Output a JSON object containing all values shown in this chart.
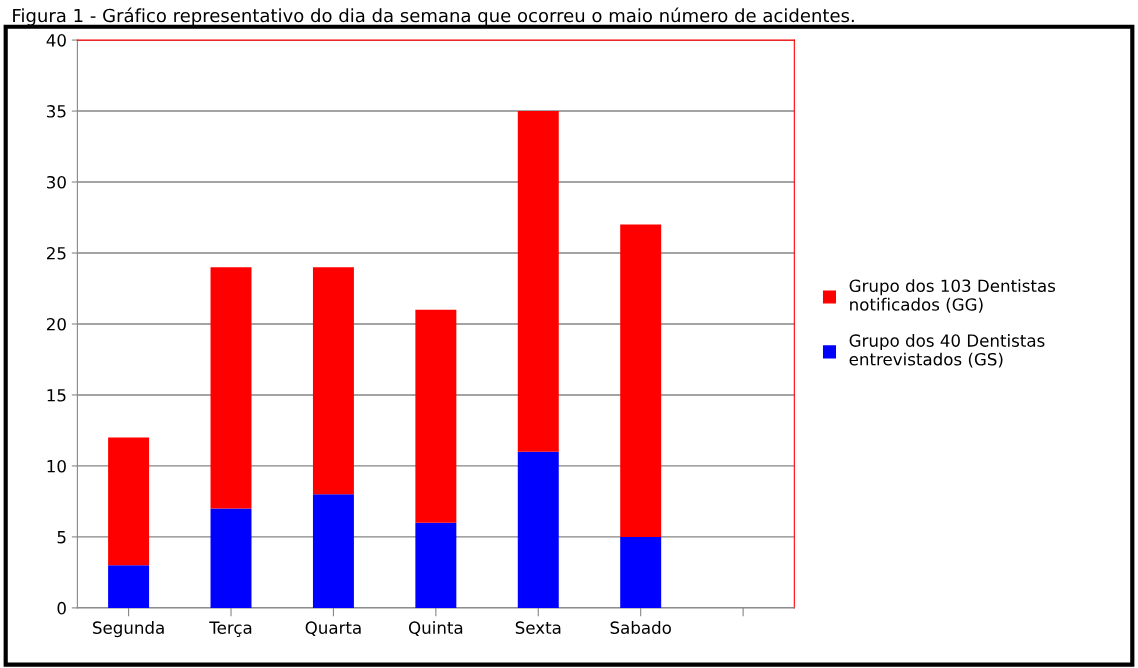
{
  "chart_data": {
    "type": "bar",
    "title": "Figura 1 - Gráfico representativo do dia da semana que ocorreu o maio número de acidentes.",
    "categories": [
      "Segunda",
      "Terça",
      "Quarta",
      "Quinta",
      "Sexta",
      "Sabado",
      null
    ],
    "stacked": true,
    "series": [
      {
        "name": "Grupo dos 40 Dentistas entrevistados (GS)",
        "color": "#0000ff",
        "values": [
          3,
          7,
          8,
          6,
          11,
          5,
          null
        ]
      },
      {
        "name": "Grupo dos 103 Dentistas notificados (GG)",
        "color": "#ff0000",
        "values": [
          9,
          17,
          16,
          15,
          24,
          22,
          null
        ]
      }
    ],
    "ylim": [
      0,
      40
    ],
    "yticks": [
      0,
      5,
      10,
      15,
      20,
      25,
      30,
      35,
      40
    ],
    "grid": "y",
    "legend": "right"
  }
}
